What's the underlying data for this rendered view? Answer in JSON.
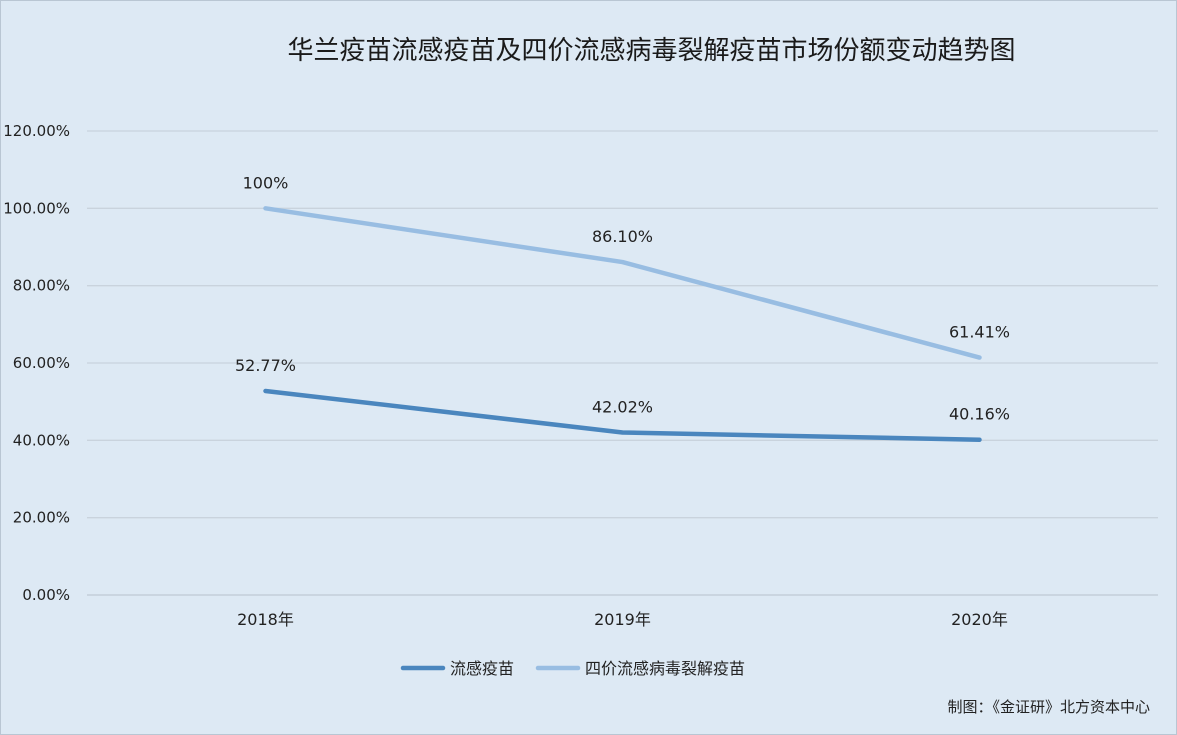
{
  "chart_data": {
    "type": "line",
    "title": "华兰疫苗流感疫苗及四价流感病毒裂解疫苗市场份额变动趋势图",
    "categories": [
      "2018年",
      "2019年",
      "2020年"
    ],
    "y_ticks": [
      "0.00%",
      "20.00%",
      "40.00%",
      "60.00%",
      "80.00%",
      "100.00%",
      "120.00%"
    ],
    "ylim": [
      0,
      120
    ],
    "grid": true,
    "legend_position": "bottom",
    "series": [
      {
        "name": "流感疫苗",
        "values": [
          52.77,
          42.02,
          40.16
        ],
        "labels": [
          "52.77%",
          "42.02%",
          "40.16%"
        ],
        "color": "#4a86be"
      },
      {
        "name": "四价流感病毒裂解疫苗",
        "values": [
          100,
          86.1,
          61.41
        ],
        "labels": [
          "100%",
          "86.10%",
          "61.41%"
        ],
        "color": "#98bde2"
      }
    ]
  },
  "credit": "制图：《金证研》北方资本中心"
}
